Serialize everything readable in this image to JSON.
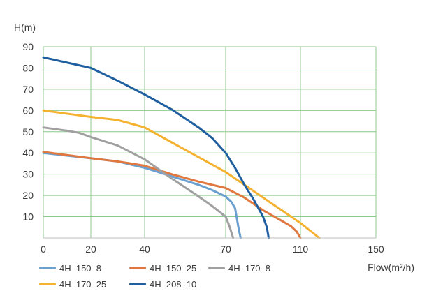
{
  "chart_data": {
    "type": "line",
    "xlabel": "Flow(m³/h)",
    "ylabel": "H(m)",
    "xlim": [
      0,
      150
    ],
    "ylim": [
      0,
      90
    ],
    "x_ticks": [
      "0",
      "20",
      "40",
      "70",
      "110",
      "150"
    ],
    "y_ticks": [
      "10",
      "20",
      "30",
      "40",
      "50",
      "60",
      "70",
      "80",
      "90"
    ],
    "grid": true,
    "legend_position": "bottom",
    "grid_color": "#8cc98c",
    "series": [
      {
        "name": "4H–150–8",
        "color": "#6a9fd0",
        "points": [
          [
            0,
            40
          ],
          [
            20,
            37.5
          ],
          [
            30,
            36
          ],
          [
            40,
            33
          ],
          [
            50,
            29
          ],
          [
            60,
            25
          ],
          [
            65,
            22.5
          ],
          [
            70,
            19.5
          ],
          [
            73,
            17
          ],
          [
            75,
            14
          ],
          [
            76,
            9
          ],
          [
            77,
            4
          ],
          [
            78,
            0
          ]
        ]
      },
      {
        "name": "4H–150–25",
        "color": "#e07840",
        "points": [
          [
            0,
            40.5
          ],
          [
            20,
            37.5
          ],
          [
            30,
            36
          ],
          [
            40,
            34
          ],
          [
            50,
            30
          ],
          [
            60,
            26.5
          ],
          [
            70,
            23.5
          ],
          [
            80,
            19
          ],
          [
            90,
            13
          ],
          [
            100,
            8
          ],
          [
            105,
            5.5
          ],
          [
            108,
            3
          ],
          [
            110,
            0
          ]
        ]
      },
      {
        "name": "4H–170–8",
        "color": "#a0a0a0",
        "points": [
          [
            0,
            52
          ],
          [
            10,
            50.5
          ],
          [
            15,
            49.5
          ],
          [
            20,
            47.5
          ],
          [
            30,
            43.5
          ],
          [
            40,
            37
          ],
          [
            50,
            28
          ],
          [
            60,
            19.5
          ],
          [
            65,
            15
          ],
          [
            70,
            10
          ],
          [
            72,
            5.5
          ],
          [
            74,
            0
          ]
        ]
      },
      {
        "name": "4H–170–25",
        "color": "#f5b230",
        "points": [
          [
            0,
            60
          ],
          [
            20,
            57
          ],
          [
            30,
            55.5
          ],
          [
            40,
            52
          ],
          [
            50,
            45
          ],
          [
            60,
            38
          ],
          [
            70,
            31
          ],
          [
            80,
            25
          ],
          [
            90,
            19
          ],
          [
            100,
            13
          ],
          [
            110,
            7
          ],
          [
            120,
            0
          ]
        ]
      },
      {
        "name": "4H–208–10",
        "color": "#1f5fa0",
        "points": [
          [
            0,
            85
          ],
          [
            20,
            80
          ],
          [
            30,
            74
          ],
          [
            40,
            67.5
          ],
          [
            50,
            60.5
          ],
          [
            60,
            52
          ],
          [
            65,
            47
          ],
          [
            70,
            40
          ],
          [
            75,
            33
          ],
          [
            80,
            25
          ],
          [
            85,
            18
          ],
          [
            90,
            10
          ],
          [
            92,
            5
          ],
          [
            93,
            0
          ]
        ]
      }
    ]
  }
}
